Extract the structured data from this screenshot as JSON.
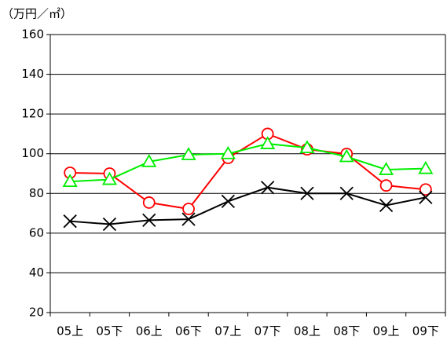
{
  "chart_data": {
    "type": "line",
    "y_label": "（万円／㎡）",
    "categories": [
      "05上",
      "05下",
      "06上",
      "06下",
      "07上",
      "07下",
      "08上",
      "08下",
      "09上",
      "09下"
    ],
    "series": [
      {
        "color": "#ff0000",
        "marker": "circle",
        "values": [
          90.4,
          90,
          75.4,
          72.2,
          97.9,
          110,
          102.2,
          99.9,
          84,
          82
        ]
      },
      {
        "color": "#00ee00",
        "marker": "triangle",
        "values": [
          86,
          87,
          96,
          99.5,
          100,
          105,
          103,
          98.5,
          92,
          92.5
        ]
      },
      {
        "color": "#000000",
        "marker": "x",
        "values": [
          66,
          64.5,
          66.5,
          67,
          76,
          83,
          80,
          80,
          74,
          78
        ]
      }
    ],
    "ylim": [
      20,
      160
    ],
    "yticks": [
      20,
      40,
      60,
      80,
      100,
      120,
      140,
      160
    ],
    "grid": true
  }
}
